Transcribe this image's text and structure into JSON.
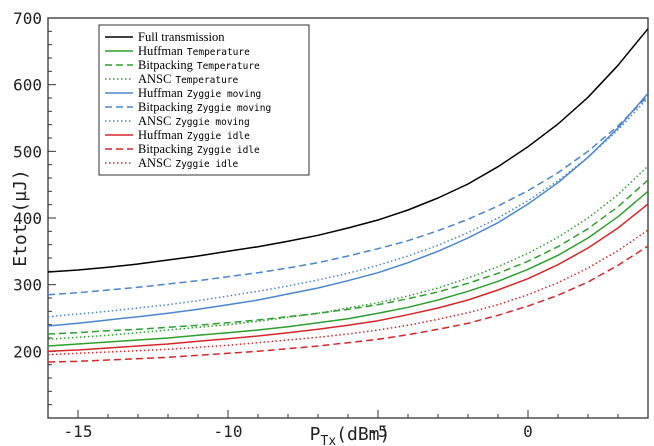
{
  "chart_data": {
    "type": "line",
    "xlabel_main": "P",
    "xlabel_sub": "Tx",
    "xlabel_unit": "(dBm)",
    "ylabel": "Etot (µJ)",
    "xlim": [
      -16,
      4
    ],
    "ylim": [
      100,
      700
    ],
    "x_ticks": [
      -15,
      -10,
      -5,
      0
    ],
    "y_ticks": [
      200,
      300,
      400,
      500,
      600,
      700
    ],
    "grid": false,
    "legend_position": "top-left",
    "x": [
      -16,
      -15,
      -14,
      -13,
      -12,
      -11,
      -10,
      -9,
      -8,
      -7,
      -6,
      -5,
      -4,
      -3,
      -2,
      -1,
      0,
      1,
      2,
      3,
      4
    ],
    "series": [
      {
        "name": "Full transmission",
        "subtitle": "",
        "color": "#000000",
        "dash": "solid",
        "values": [
          319,
          322,
          326,
          331,
          337,
          343,
          350,
          357,
          365,
          374,
          385,
          397,
          412,
          430,
          451,
          477,
          507,
          541,
          581,
          629,
          684
        ]
      },
      {
        "name": "Huffman",
        "subtitle": "Temperature",
        "color": "#2ca02c",
        "dash": "solid",
        "values": [
          208,
          211,
          214,
          217,
          220,
          224,
          228,
          232,
          237,
          243,
          249,
          257,
          266,
          277,
          290,
          305,
          323,
          344,
          370,
          402,
          440
        ]
      },
      {
        "name": "Bitpacking",
        "subtitle": "Temperature",
        "color": "#2ca02c",
        "dash": "dashed",
        "values": [
          226,
          228,
          231,
          233,
          236,
          239,
          243,
          247,
          252,
          257,
          263,
          270,
          279,
          289,
          302,
          317,
          335,
          357,
          384,
          417,
          457
        ]
      },
      {
        "name": "ANSC",
        "subtitle": "Temperature",
        "color": "#2ca02c",
        "dash": "dotted",
        "values": [
          218,
          221,
          224,
          228,
          232,
          236,
          240,
          245,
          251,
          257,
          265,
          273,
          283,
          295,
          310,
          327,
          347,
          371,
          400,
          435,
          478
        ]
      },
      {
        "name": "Huffman",
        "subtitle": "Zyggie moving",
        "color": "#4a86cf",
        "dash": "solid",
        "values": [
          238,
          242,
          247,
          252,
          257,
          263,
          270,
          277,
          286,
          295,
          306,
          318,
          333,
          350,
          370,
          393,
          421,
          453,
          491,
          535,
          587
        ]
      },
      {
        "name": "Bitpacking",
        "subtitle": "Zyggie moving",
        "color": "#4a86cf",
        "dash": "dashed",
        "values": [
          285,
          288,
          292,
          296,
          301,
          306,
          312,
          318,
          325,
          333,
          343,
          354,
          366,
          381,
          398,
          418,
          441,
          468,
          500,
          538,
          583
        ]
      },
      {
        "name": "ANSC",
        "subtitle": "Zyggie moving",
        "color": "#4a86cf",
        "dash": "dotted",
        "values": [
          252,
          256,
          260,
          265,
          270,
          276,
          283,
          290,
          298,
          307,
          317,
          329,
          343,
          359,
          378,
          400,
          426,
          456,
          491,
          532,
          580
        ]
      },
      {
        "name": "Huffman",
        "subtitle": "Zyggie idle",
        "color": "#d62728",
        "dash": "solid",
        "values": [
          200,
          202,
          205,
          208,
          211,
          215,
          219,
          223,
          228,
          233,
          239,
          246,
          255,
          265,
          277,
          292,
          309,
          330,
          355,
          385,
          421
        ]
      },
      {
        "name": "Bitpacking",
        "subtitle": "Zyggie idle",
        "color": "#d62728",
        "dash": "dashed",
        "values": [
          184,
          185,
          187,
          189,
          191,
          194,
          197,
          200,
          204,
          208,
          213,
          218,
          225,
          233,
          242,
          254,
          268,
          284,
          304,
          329,
          358
        ]
      },
      {
        "name": "ANSC",
        "subtitle": "Zyggie idle",
        "color": "#d62728",
        "dash": "dotted",
        "values": [
          195,
          197,
          199,
          201,
          203,
          206,
          209,
          213,
          217,
          221,
          226,
          232,
          239,
          248,
          258,
          270,
          285,
          303,
          325,
          351,
          382
        ]
      }
    ]
  }
}
